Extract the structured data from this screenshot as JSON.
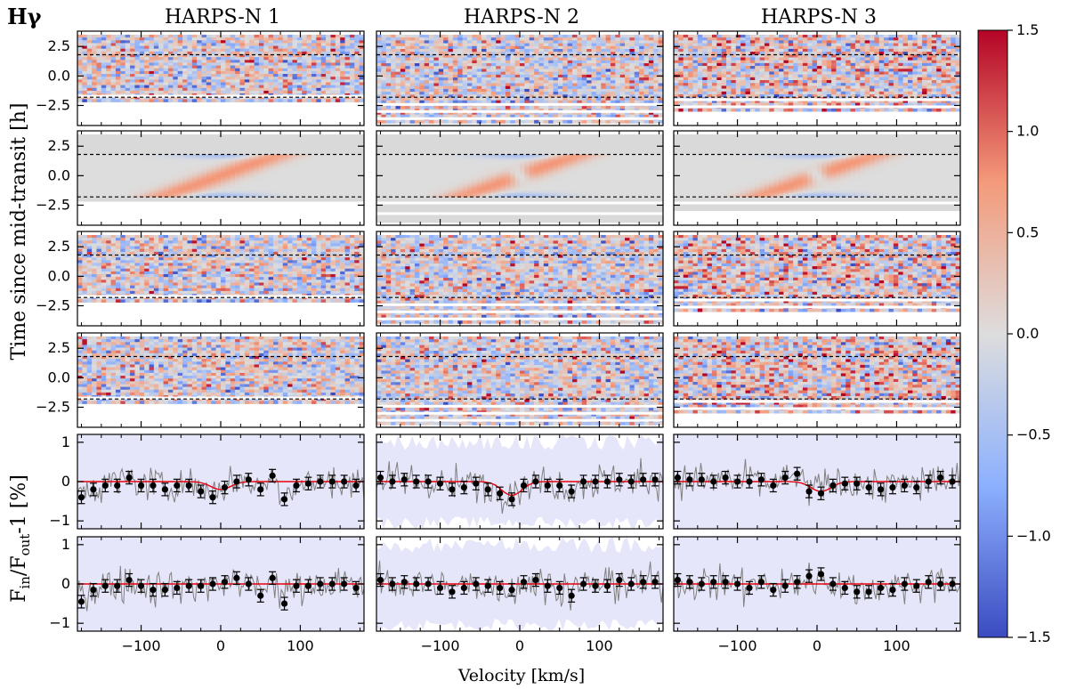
{
  "chart_data": {
    "type": "heatmap",
    "line_label": "Hγ",
    "columns": [
      "HARPS-N 1",
      "HARPS-N 2",
      "HARPS-N 3"
    ],
    "xlabel": "Velocity [km/s]",
    "ylabel_maps": "Time since mid-transit [h]",
    "ylabel_profiles": "F_in/F_out-1 [%]",
    "xlim": [
      -180,
      180
    ],
    "x_ticks": [
      -100,
      0,
      100
    ],
    "x_tick_labels": [
      "−100",
      "0",
      "100"
    ],
    "map_ylim": [
      -4.2,
      3.8
    ],
    "map_y_ticks": [
      2.5,
      0.0,
      -2.5
    ],
    "map_y_tick_labels": [
      "2.5",
      "0.0",
      "−2.5"
    ],
    "profile_ylim": [
      -1.2,
      1.2
    ],
    "profile_y_ticks": [
      1,
      0,
      -1
    ],
    "profile_y_tick_labels": [
      "1",
      "0",
      "−1"
    ],
    "colorbar": {
      "range": [
        -1.5,
        1.5
      ],
      "ticks": [
        1.5,
        1.0,
        0.5,
        0.0,
        -0.5,
        -1.0,
        -1.5
      ],
      "tick_labels": [
        "1.5",
        "1.0",
        "0.5",
        "0.0",
        "−0.5",
        "−1.0",
        "−1.5"
      ],
      "colors": [
        "#3b4cc0",
        "#dddddd",
        "#b40426"
      ]
    },
    "transit_window_h": [
      -1.8,
      1.8
    ],
    "observation_window_h": {
      "HARPS-N 1": [
        -2.2,
        3.5
      ],
      "HARPS-N 2": [
        -4.0,
        3.5
      ],
      "HARPS-N 3": [
        -3.0,
        3.5
      ]
    },
    "profile_rows": [
      {
        "row": "top",
        "series": [
          {
            "name": "HARPS-N 1",
            "velocity": [
              -175,
              -160,
              -145,
              -130,
              -115,
              -100,
              -85,
              -70,
              -55,
              -40,
              -25,
              -10,
              5,
              20,
              35,
              50,
              65,
              80,
              95,
              110,
              125,
              140,
              155,
              170
            ],
            "values": [
              -0.4,
              -0.2,
              -0.1,
              -0.1,
              0.1,
              -0.1,
              -0.1,
              -0.2,
              -0.1,
              -0.1,
              -0.25,
              -0.4,
              -0.15,
              0.0,
              0.05,
              -0.2,
              0.15,
              -0.45,
              -0.1,
              -0.05,
              0.0,
              0.0,
              0.0,
              -0.1
            ]
          },
          {
            "name": "HARPS-N 2",
            "velocity": [
              -175,
              -160,
              -145,
              -130,
              -115,
              -100,
              -85,
              -70,
              -55,
              -40,
              -25,
              -10,
              5,
              20,
              35,
              50,
              65,
              80,
              95,
              110,
              125,
              140,
              155,
              170
            ],
            "values": [
              0.1,
              0.0,
              0.05,
              0.0,
              0.0,
              -0.05,
              -0.2,
              -0.15,
              -0.05,
              -0.2,
              -0.3,
              -0.45,
              -0.1,
              0.0,
              -0.1,
              -0.1,
              -0.25,
              0.0,
              0.0,
              0.0,
              0.05,
              0.0,
              0.05,
              0.05
            ]
          },
          {
            "name": "HARPS-N 3",
            "velocity": [
              -175,
              -160,
              -145,
              -130,
              -115,
              -100,
              -85,
              -70,
              -55,
              -40,
              -25,
              -10,
              5,
              20,
              35,
              50,
              65,
              80,
              95,
              110,
              125,
              140,
              155,
              170
            ],
            "values": [
              0.1,
              0.05,
              0.05,
              0.0,
              0.1,
              0.0,
              0.0,
              0.05,
              -0.1,
              0.1,
              0.2,
              -0.25,
              -0.3,
              -0.1,
              -0.05,
              -0.05,
              -0.15,
              -0.2,
              -0.15,
              -0.1,
              -0.15,
              0.0,
              0.1,
              0.0
            ]
          }
        ],
        "model_dip": {
          "HARPS-N 1": -0.2,
          "HARPS-N 2": -0.35,
          "HARPS-N 3": -0.25
        }
      },
      {
        "row": "bottom",
        "series": [
          {
            "name": "HARPS-N 1",
            "velocity": [
              -175,
              -160,
              -145,
              -130,
              -115,
              -100,
              -85,
              -70,
              -55,
              -40,
              -25,
              -10,
              5,
              20,
              35,
              50,
              65,
              80,
              95,
              110,
              125,
              140,
              155,
              170
            ],
            "values": [
              -0.45,
              -0.15,
              -0.05,
              -0.05,
              0.1,
              -0.05,
              -0.15,
              -0.15,
              -0.1,
              -0.05,
              -0.05,
              0.0,
              0.05,
              0.15,
              0.0,
              -0.3,
              0.15,
              -0.5,
              -0.05,
              -0.05,
              0.0,
              0.0,
              0.0,
              -0.1
            ]
          },
          {
            "name": "HARPS-N 2",
            "velocity": [
              -175,
              -160,
              -145,
              -130,
              -115,
              -100,
              -85,
              -70,
              -55,
              -40,
              -25,
              -10,
              5,
              20,
              35,
              50,
              65,
              80,
              95,
              110,
              125,
              140,
              155,
              170
            ],
            "values": [
              0.1,
              0.0,
              0.05,
              0.0,
              0.0,
              -0.1,
              -0.2,
              -0.1,
              0.0,
              -0.05,
              -0.1,
              -0.15,
              0.05,
              0.1,
              -0.05,
              -0.1,
              -0.3,
              0.0,
              -0.05,
              -0.05,
              0.1,
              0.0,
              0.05,
              0.05
            ]
          },
          {
            "name": "HARPS-N 3",
            "velocity": [
              -175,
              -160,
              -145,
              -130,
              -115,
              -100,
              -85,
              -70,
              -55,
              -40,
              -25,
              -10,
              5,
              20,
              35,
              50,
              65,
              80,
              95,
              110,
              125,
              140,
              155,
              170
            ],
            "values": [
              0.1,
              0.05,
              0.0,
              0.05,
              0.05,
              0.0,
              -0.1,
              0.05,
              -0.15,
              -0.05,
              0.05,
              0.2,
              0.25,
              0.0,
              -0.1,
              -0.2,
              -0.2,
              -0.1,
              -0.15,
              0.0,
              -0.05,
              0.05,
              0.0,
              0.0
            ]
          }
        ]
      }
    ]
  }
}
